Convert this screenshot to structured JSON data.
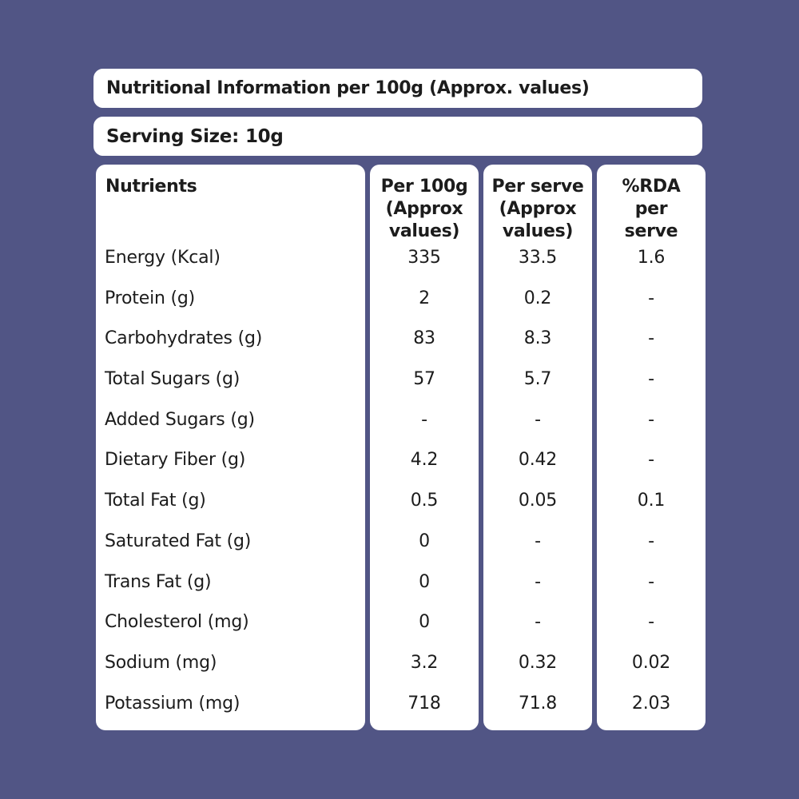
{
  "title": "Nutritional Information per 100g (Approx. values)",
  "serving": {
    "label": "Serving Size:",
    "value": "10g"
  },
  "headers": {
    "nutrients": "Nutrients",
    "per100g": [
      "Per 100g",
      "(Approx",
      "values)"
    ],
    "per_serve": [
      "Per serve",
      "(Approx",
      "values)"
    ],
    "rda": [
      "%RDA",
      "per",
      "serve"
    ]
  },
  "rows": [
    {
      "name": "Energy (Kcal)",
      "per100g": "335",
      "per_serve": "33.5",
      "rda": "1.6"
    },
    {
      "name": "Protein (g)",
      "per100g": "2",
      "per_serve": "0.2",
      "rda": "-"
    },
    {
      "name": "Carbohydrates (g)",
      "per100g": "83",
      "per_serve": "8.3",
      "rda": "-"
    },
    {
      "name": "Total Sugars (g)",
      "per100g": "57",
      "per_serve": "5.7",
      "rda": "-"
    },
    {
      "name": "Added Sugars (g)",
      "per100g": "-",
      "per_serve": "-",
      "rda": "-"
    },
    {
      "name": "Dietary Fiber (g)",
      "per100g": "4.2",
      "per_serve": "0.42",
      "rda": "-"
    },
    {
      "name": "Total Fat (g)",
      "per100g": "0.5",
      "per_serve": "0.05",
      "rda": "0.1"
    },
    {
      "name": "Saturated Fat (g)",
      "per100g": "0",
      "per_serve": "-",
      "rda": "-"
    },
    {
      "name": "Trans Fat (g)",
      "per100g": "0",
      "per_serve": "-",
      "rda": "-"
    },
    {
      "name": "Cholesterol (mg)",
      "per100g": "0",
      "per_serve": "-",
      "rda": "-"
    },
    {
      "name": "Sodium (mg)",
      "per100g": "3.2",
      "per_serve": "0.32",
      "rda": "0.02"
    },
    {
      "name": "Potassium (mg)",
      "per100g": "718",
      "per_serve": "71.8",
      "rda": "2.03"
    }
  ],
  "colors": {
    "background": "#515585",
    "panel": "#ffffff",
    "text": "#1c1c1c"
  }
}
